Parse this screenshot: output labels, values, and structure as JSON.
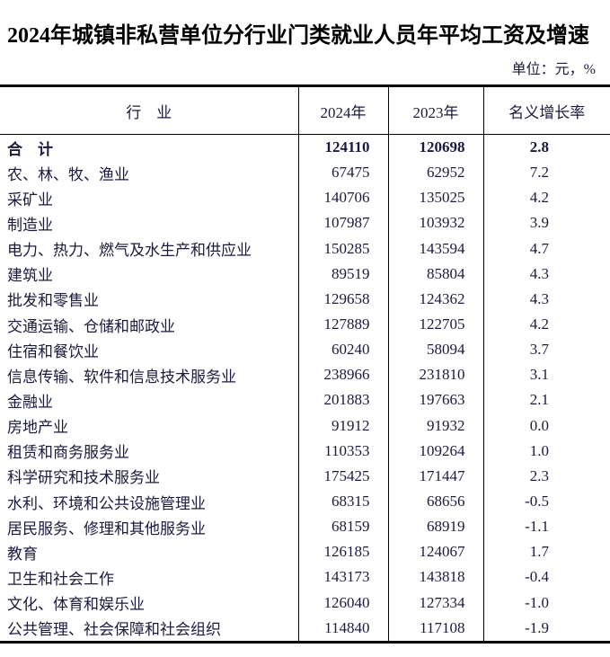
{
  "page": {
    "title": "2024年城镇非私营单位分行业门类就业人员年平均工资及增速",
    "unit_note": "单位：元，%"
  },
  "table": {
    "columns": [
      "行　业",
      "2024年",
      "2023年",
      "名义增长率"
    ],
    "rows": [
      {
        "industry": "合　计",
        "y2024": "124110",
        "y2023": "120698",
        "growth": "2.8",
        "bold": true
      },
      {
        "industry": "农、林、牧、渔业",
        "y2024": "67475",
        "y2023": "62952",
        "growth": "7.2",
        "bold": false
      },
      {
        "industry": "采矿业",
        "y2024": "140706",
        "y2023": "135025",
        "growth": "4.2",
        "bold": false
      },
      {
        "industry": "制造业",
        "y2024": "107987",
        "y2023": "103932",
        "growth": "3.9",
        "bold": false
      },
      {
        "industry": "电力、热力、燃气及水生产和供应业",
        "y2024": "150285",
        "y2023": "143594",
        "growth": "4.7",
        "bold": false
      },
      {
        "industry": "建筑业",
        "y2024": "89519",
        "y2023": "85804",
        "growth": "4.3",
        "bold": false
      },
      {
        "industry": "批发和零售业",
        "y2024": "129658",
        "y2023": "124362",
        "growth": "4.3",
        "bold": false
      },
      {
        "industry": "交通运输、仓储和邮政业",
        "y2024": "127889",
        "y2023": "122705",
        "growth": "4.2",
        "bold": false
      },
      {
        "industry": "住宿和餐饮业",
        "y2024": "60240",
        "y2023": "58094",
        "growth": "3.7",
        "bold": false
      },
      {
        "industry": "信息传输、软件和信息技术服务业",
        "y2024": "238966",
        "y2023": "231810",
        "growth": "3.1",
        "bold": false
      },
      {
        "industry": "金融业",
        "y2024": "201883",
        "y2023": "197663",
        "growth": "2.1",
        "bold": false
      },
      {
        "industry": "房地产业",
        "y2024": "91912",
        "y2023": "91932",
        "growth": "0.0",
        "bold": false
      },
      {
        "industry": "租赁和商务服务业",
        "y2024": "110353",
        "y2023": "109264",
        "growth": "1.0",
        "bold": false
      },
      {
        "industry": "科学研究和技术服务业",
        "y2024": "175425",
        "y2023": "171447",
        "growth": "2.3",
        "bold": false
      },
      {
        "industry": "水利、环境和公共设施管理业",
        "y2024": "68315",
        "y2023": "68656",
        "growth": "-0.5",
        "bold": false
      },
      {
        "industry": "居民服务、修理和其他服务业",
        "y2024": "68159",
        "y2023": "68919",
        "growth": "-1.1",
        "bold": false
      },
      {
        "industry": "教育",
        "y2024": "126185",
        "y2023": "124067",
        "growth": "1.7",
        "bold": false
      },
      {
        "industry": "卫生和社会工作",
        "y2024": "143173",
        "y2023": "143818",
        "growth": "-0.4",
        "bold": false
      },
      {
        "industry": "文化、体育和娱乐业",
        "y2024": "126040",
        "y2023": "127334",
        "growth": "-1.0",
        "bold": false
      },
      {
        "industry": "公共管理、社会保障和社会组织",
        "y2024": "114840",
        "y2023": "117108",
        "growth": "-1.9",
        "bold": false
      }
    ]
  },
  "colors": {
    "text": "#1a1a3f",
    "title": "#000000",
    "border": "#000000",
    "background": "#ffffff"
  }
}
